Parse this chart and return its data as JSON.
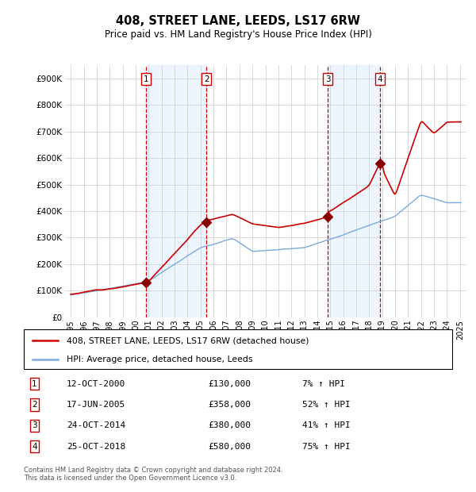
{
  "title": "408, STREET LANE, LEEDS, LS17 6RW",
  "subtitle": "Price paid vs. HM Land Registry's House Price Index (HPI)",
  "footer": "Contains HM Land Registry data © Crown copyright and database right 2024.\nThis data is licensed under the Open Government Licence v3.0.",
  "legend_line1": "408, STREET LANE, LEEDS, LS17 6RW (detached house)",
  "legend_line2": "HPI: Average price, detached house, Leeds",
  "transactions": [
    {
      "num": 1,
      "date": "12-OCT-2000",
      "price": 130000,
      "hpi_pct": "7% ↑ HPI",
      "year": 2000.79
    },
    {
      "num": 2,
      "date": "17-JUN-2005",
      "price": 358000,
      "hpi_pct": "52% ↑ HPI",
      "year": 2005.46
    },
    {
      "num": 3,
      "date": "24-OCT-2014",
      "price": 380000,
      "hpi_pct": "41% ↑ HPI",
      "year": 2014.82
    },
    {
      "num": 4,
      "date": "25-OCT-2018",
      "price": 580000,
      "hpi_pct": "75% ↑ HPI",
      "year": 2018.82
    }
  ],
  "ylim": [
    0,
    950000
  ],
  "yticks": [
    0,
    100000,
    200000,
    300000,
    400000,
    500000,
    600000,
    700000,
    800000,
    900000
  ],
  "ytick_labels": [
    "£0",
    "£100K",
    "£200K",
    "£300K",
    "£400K",
    "£500K",
    "£600K",
    "£700K",
    "£800K",
    "£900K"
  ],
  "xlim_start": 1994.5,
  "xlim_end": 2025.5,
  "xticks": [
    1995,
    1996,
    1997,
    1998,
    1999,
    2000,
    2001,
    2002,
    2003,
    2004,
    2005,
    2006,
    2007,
    2008,
    2009,
    2010,
    2011,
    2012,
    2013,
    2014,
    2015,
    2016,
    2017,
    2018,
    2019,
    2020,
    2021,
    2022,
    2023,
    2024,
    2025
  ],
  "hpi_color": "#7aaadd",
  "price_color": "#cc0000",
  "bg_shade_color": "#ddeeff",
  "vline_color": "#cc0000",
  "marker_color": "#880000",
  "grid_color": "#cccccc",
  "box_edge_color": "#cc0000",
  "shade_alpha": 0.5
}
